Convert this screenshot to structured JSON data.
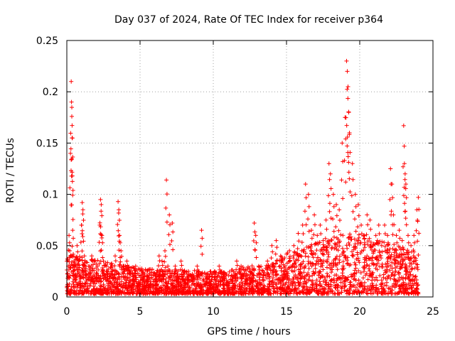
{
  "chart_data": {
    "type": "scatter",
    "title": "Day 037 of 2024, Rate Of TEC Index for receiver p364",
    "xlabel": "GPS time / hours",
    "ylabel": "ROTI / TECUs",
    "xlim": [
      0,
      25
    ],
    "ylim": [
      0,
      0.25
    ],
    "xticks": [
      0,
      5,
      10,
      15,
      20,
      25
    ],
    "xtick_labels": [
      "0",
      "5",
      "10",
      "15",
      "20",
      "25"
    ],
    "yticks": [
      0,
      0.05,
      0.1,
      0.15,
      0.2,
      0.25
    ],
    "ytick_labels": [
      "0",
      "0.05",
      "0.1",
      "0.15",
      "0.2",
      "0.25"
    ],
    "grid": true,
    "marker": "+",
    "color": "#ff0000",
    "series": [
      {
        "name": "ROTI",
        "x": [
          0.05,
          0.1,
          0.15,
          0.2,
          0.25,
          0.3,
          0.32,
          0.34,
          0.36,
          0.38,
          0.4,
          0.45,
          0.5,
          0.6,
          0.7,
          0.8,
          0.9,
          1.0,
          1.05,
          1.1,
          1.2,
          1.3,
          1.5,
          1.7,
          1.9,
          2.1,
          2.25,
          2.3,
          2.35,
          2.4,
          2.5,
          2.7,
          2.9,
          3.1,
          3.3,
          3.5,
          3.55,
          3.6,
          3.7,
          3.9,
          4.1,
          4.3,
          4.5,
          4.7,
          4.9,
          5.1,
          5.3,
          5.5,
          5.7,
          5.9,
          6.1,
          6.3,
          6.5,
          6.7,
          6.8,
          6.9,
          7.0,
          7.2,
          7.4,
          7.6,
          7.8,
          8.0,
          8.3,
          8.6,
          8.9,
          9.2,
          9.5,
          9.8,
          10.1,
          10.4,
          10.7,
          11.0,
          11.3,
          11.6,
          11.9,
          12.2,
          12.5,
          12.8,
          12.9,
          13.1,
          13.4,
          13.7,
          14.0,
          14.3,
          14.6,
          14.9,
          15.2,
          15.5,
          15.8,
          16.1,
          16.3,
          16.5,
          16.7,
          16.9,
          17.1,
          17.3,
          17.5,
          17.7,
          17.9,
          18.0,
          18.2,
          18.4,
          18.6,
          18.8,
          19.0,
          19.1,
          19.15,
          19.2,
          19.25,
          19.3,
          19.5,
          19.7,
          19.9,
          20.1,
          20.3,
          20.5,
          20.7,
          20.9,
          21.1,
          21.3,
          21.5,
          21.7,
          21.9,
          22.1,
          22.2,
          22.3,
          22.5,
          22.7,
          22.9,
          23.0,
          23.05,
          23.1,
          23.15,
          23.3,
          23.5,
          23.7,
          23.9,
          24.0
        ],
        "y": [
          0.012,
          0.03,
          0.06,
          0.045,
          0.14,
          0.21,
          0.19,
          0.176,
          0.155,
          0.118,
          0.065,
          0.04,
          0.03,
          0.022,
          0.05,
          0.035,
          0.02,
          0.07,
          0.092,
          0.085,
          0.04,
          0.025,
          0.03,
          0.04,
          0.02,
          0.03,
          0.07,
          0.095,
          0.09,
          0.06,
          0.035,
          0.025,
          0.02,
          0.03,
          0.04,
          0.093,
          0.085,
          0.06,
          0.045,
          0.03,
          0.035,
          0.025,
          0.02,
          0.03,
          0.015,
          0.025,
          0.01,
          0.02,
          0.015,
          0.012,
          0.02,
          0.04,
          0.035,
          0.045,
          0.114,
          0.03,
          0.08,
          0.072,
          0.03,
          0.02,
          0.035,
          0.015,
          0.025,
          0.02,
          0.03,
          0.065,
          0.02,
          0.015,
          0.025,
          0.03,
          0.02,
          0.015,
          0.02,
          0.035,
          0.03,
          0.02,
          0.025,
          0.072,
          0.06,
          0.03,
          0.025,
          0.035,
          0.05,
          0.055,
          0.04,
          0.03,
          0.045,
          0.05,
          0.062,
          0.07,
          0.11,
          0.1,
          0.065,
          0.08,
          0.06,
          0.07,
          0.055,
          0.075,
          0.13,
          0.12,
          0.1,
          0.09,
          0.085,
          0.15,
          0.175,
          0.23,
          0.22,
          0.205,
          0.18,
          0.16,
          0.13,
          0.1,
          0.09,
          0.07,
          0.06,
          0.08,
          0.075,
          0.05,
          0.06,
          0.07,
          0.05,
          0.07,
          0.06,
          0.125,
          0.11,
          0.08,
          0.06,
          0.065,
          0.055,
          0.167,
          0.13,
          0.12,
          0.11,
          0.06,
          0.05,
          0.06,
          0.085,
          0.097
        ]
      }
    ],
    "background_points": {
      "count": 2600,
      "x_range": [
        0,
        24
      ],
      "y_floor": 0.003,
      "y_envelope": [
        [
          0,
          0.04
        ],
        [
          5,
          0.025
        ],
        [
          10,
          0.022
        ],
        [
          14,
          0.03
        ],
        [
          15,
          0.04
        ],
        [
          17,
          0.05
        ],
        [
          19,
          0.06
        ],
        [
          21,
          0.055
        ],
        [
          24,
          0.04
        ]
      ]
    }
  }
}
